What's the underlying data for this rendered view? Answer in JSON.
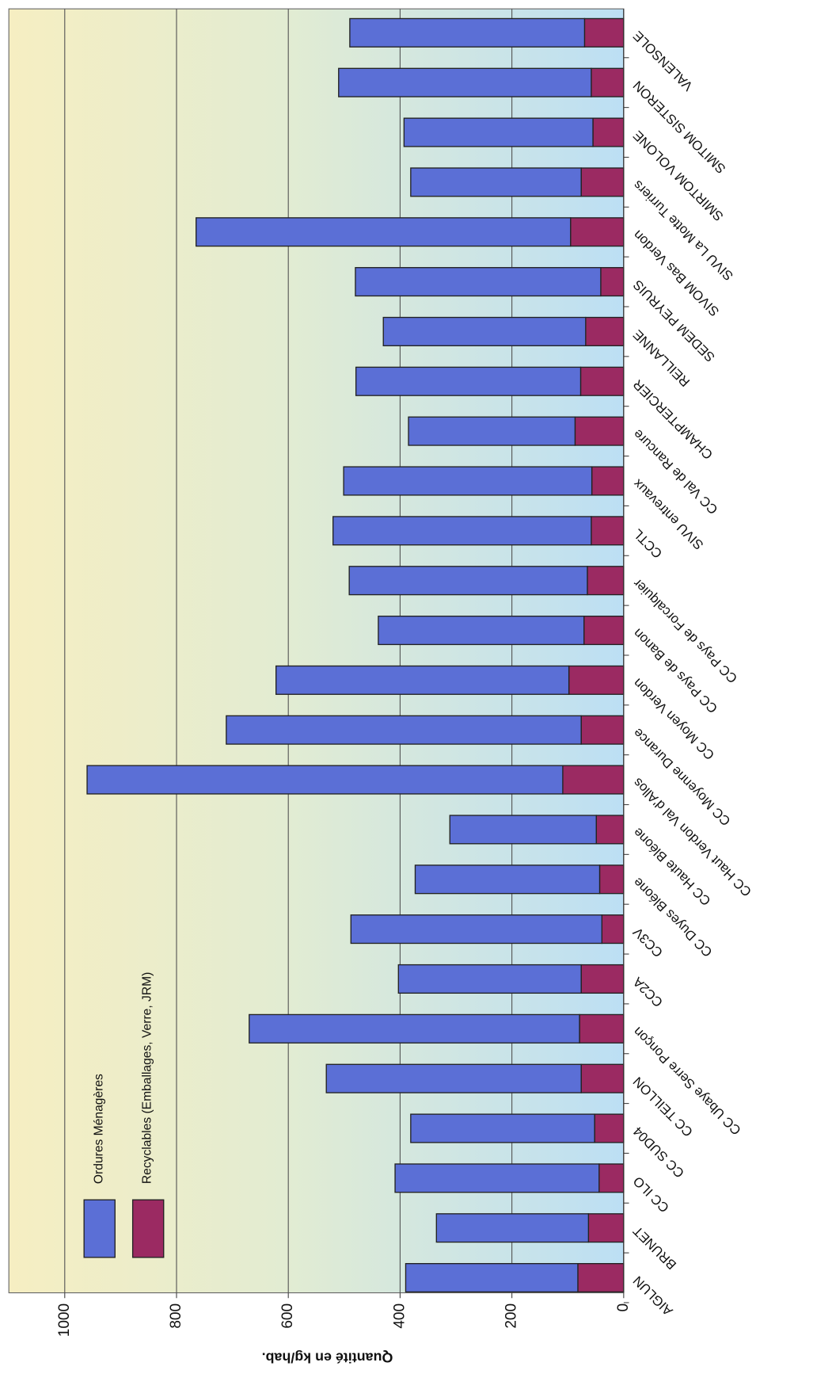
{
  "chart_data": {
    "type": "bar",
    "stacked": true,
    "y_label": "Quantité en kg/hab.",
    "categories": [
      "AIGLUN",
      "BRUNET",
      "CC ILO",
      "CC SUD04",
      "CC TEILLON",
      "CC Ubaye Serre Ponçon",
      "CC2A",
      "CC3V",
      "CC Duyes Bléone",
      "CC Haute Bléone",
      "CC Haut Verdon Val d'Allos",
      "CC Moyenne Durance",
      "CC Moyen Verdon",
      "CC Pays de Banon",
      "CC Pays de Forcalquier",
      "CCTL",
      "SIVU entrevaux",
      "CC Val de Rancure",
      "CHAMPTERCIER",
      "REILLANNE",
      "SEDEM PEYRUIS",
      "SIVOM Bas Verdon",
      "SIVU La Motte Turriers",
      "SMIRTOM VOLONE",
      "SMITOM SISTERON",
      "VALENSOLE"
    ],
    "series": [
      {
        "name": "Recyclables (Emballages, Verre, JRM)",
        "color": "#9b2a62",
        "values": [
          82,
          63,
          44,
          52,
          76,
          79,
          76,
          39,
          43,
          49,
          109,
          76,
          98,
          71,
          65,
          58,
          57,
          87,
          77,
          68,
          41,
          95,
          76,
          55,
          58,
          70
        ]
      },
      {
        "name": "Ordures Ménagères",
        "color": "#5b6fd6",
        "values": [
          308,
          272,
          365,
          329,
          456,
          591,
          327,
          449,
          330,
          262,
          851,
          635,
          524,
          368,
          426,
          462,
          444,
          298,
          402,
          362,
          439,
          670,
          305,
          338,
          452,
          420
        ]
      }
    ],
    "ylim": [
      0,
      1100
    ],
    "yticks": [
      0,
      200,
      400,
      600,
      800,
      1000
    ],
    "grid": true
  }
}
